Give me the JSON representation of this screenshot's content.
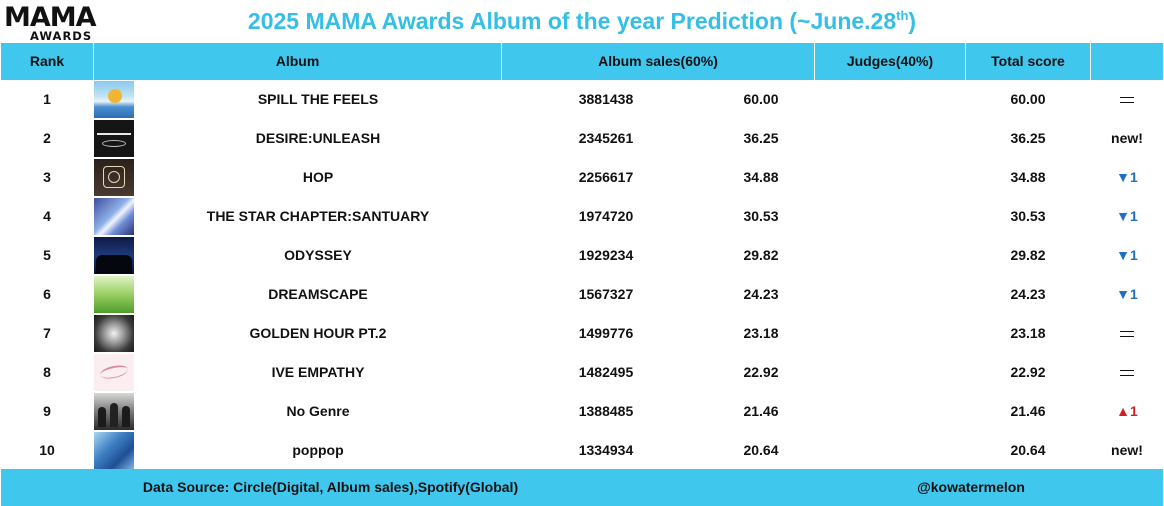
{
  "logo": {
    "main": "MAMA",
    "sub": "AWARDS"
  },
  "title": {
    "text": "2025 MAMA Awards Album of the year Prediction (~June.28",
    "sup": "th",
    "close": ")"
  },
  "headers": {
    "rank": "Rank",
    "album": "Album",
    "sales": "Album sales(60%)",
    "judges": "Judges(40%)",
    "total": "Total score"
  },
  "rows": [
    {
      "rank": "1",
      "album": "SPILL THE FEELS",
      "sales": "3881438",
      "sales_score": "60.00",
      "total": "60.00",
      "change": {
        "type": "same",
        "text": ""
      }
    },
    {
      "rank": "2",
      "album": "DESIRE:UNLEASH",
      "sales": "2345261",
      "sales_score": "36.25",
      "total": "36.25",
      "change": {
        "type": "new",
        "text": "new!"
      }
    },
    {
      "rank": "3",
      "album": "HOP",
      "sales": "2256617",
      "sales_score": "34.88",
      "total": "34.88",
      "change": {
        "type": "down",
        "text": "▼1"
      }
    },
    {
      "rank": "4",
      "album": "THE STAR CHAPTER:SANTUARY",
      "sales": "1974720",
      "sales_score": "30.53",
      "total": "30.53",
      "change": {
        "type": "down",
        "text": "▼1"
      }
    },
    {
      "rank": "5",
      "album": "ODYSSEY",
      "sales": "1929234",
      "sales_score": "29.82",
      "total": "29.82",
      "change": {
        "type": "down",
        "text": "▼1"
      }
    },
    {
      "rank": "6",
      "album": "DREAMSCAPE",
      "sales": "1567327",
      "sales_score": "24.23",
      "total": "24.23",
      "change": {
        "type": "down",
        "text": "▼1"
      }
    },
    {
      "rank": "7",
      "album": "GOLDEN HOUR PT.2",
      "sales": "1499776",
      "sales_score": "23.18",
      "total": "23.18",
      "change": {
        "type": "same",
        "text": ""
      }
    },
    {
      "rank": "8",
      "album": "IVE EMPATHY",
      "sales": "1482495",
      "sales_score": "22.92",
      "total": "22.92",
      "change": {
        "type": "same",
        "text": ""
      }
    },
    {
      "rank": "9",
      "album": "No Genre",
      "sales": "1388485",
      "sales_score": "21.46",
      "total": "21.46",
      "change": {
        "type": "up",
        "text": "▲1"
      }
    },
    {
      "rank": "10",
      "album": "poppop",
      "sales": "1334934",
      "sales_score": "20.64",
      "total": "20.64",
      "change": {
        "type": "new",
        "text": "new!"
      }
    }
  ],
  "footer": {
    "source": "Data Source: Circle(Digital, Album sales),Spotify(Global)",
    "credit": "@kowatermelon"
  },
  "colors": {
    "accent": "#3fc7ee",
    "title": "#33bfe6",
    "down": "#1f6fc2",
    "up": "#d41d1d"
  }
}
